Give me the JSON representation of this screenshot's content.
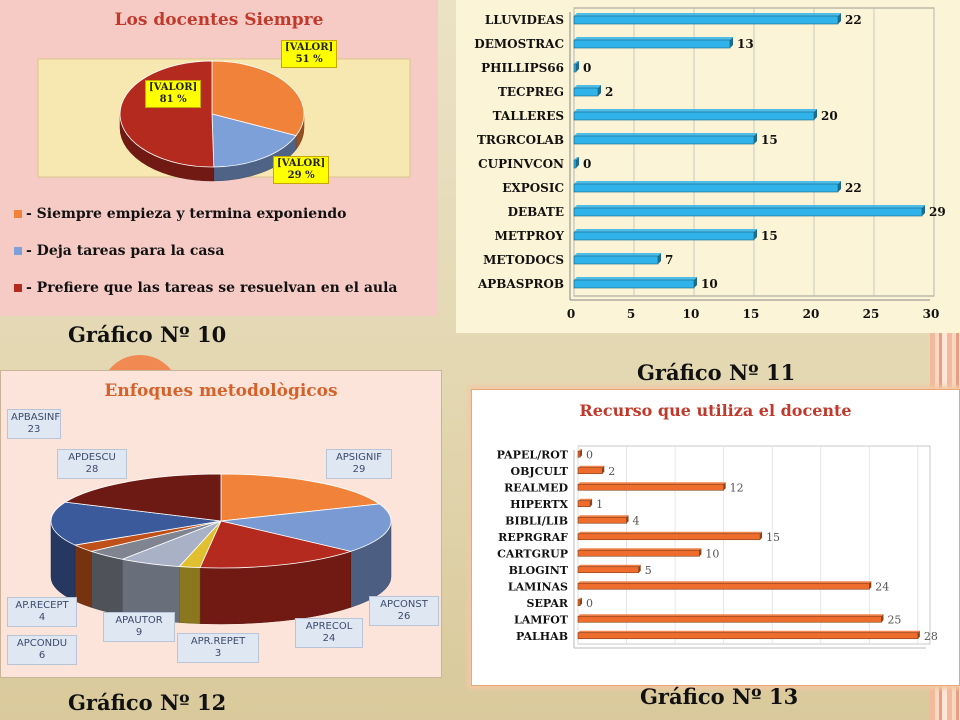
{
  "captions": {
    "g10": "Gráfico Nº 10",
    "g11": "Gráfico Nº 11",
    "g12": "Gráfico Nº 12",
    "g13": "Gráfico Nº 13"
  },
  "colors": {
    "pie10": [
      "#f0823a",
      "#7ea0d8",
      "#b42a1e"
    ],
    "bar11": "#2fb3ea",
    "bar13": "#ee6d2d",
    "pie12": [
      "#f0823a",
      "#7a9ad4",
      "#b42a1e",
      "#e0c030",
      "#a9b1c6",
      "#7f8490",
      "#c0501a",
      "#3a5a9c",
      "#6e1a14"
    ]
  },
  "chart_data": [
    {
      "id": "g10",
      "type": "pie",
      "title": "Los docentes Siempre",
      "legend_position": "bottom",
      "slices": [
        {
          "label": "- Siempre empieza y termina exponiendo",
          "value": 51,
          "value_label": "[VALOR]",
          "value_sub": "51 %"
        },
        {
          "label": "- Deja tareas para la casa",
          "value": 29,
          "value_label": "[VALOR]",
          "value_sub": "29 %"
        },
        {
          "label": "- Prefiere que las tareas se resuelvan en el aula",
          "value": 81,
          "value_label": "[VALOR]",
          "value_sub": "81 %"
        }
      ]
    },
    {
      "id": "g11",
      "type": "bar",
      "orientation": "horizontal",
      "title": "",
      "categories": [
        "LLUVIDEAS",
        "DEMOSTRAC",
        "PHILLIPS66",
        "TECPREG",
        "TALLERES",
        "TRGRCOLAB",
        "CUPINVCON",
        "EXPOSIC",
        "DEBATE",
        "METPROY",
        "METODOCS",
        "APBASPROB"
      ],
      "values": [
        22,
        13,
        0,
        2,
        20,
        15,
        0,
        22,
        29,
        15,
        7,
        10
      ],
      "xlim": [
        0,
        30
      ],
      "xticks": [
        0,
        5,
        10,
        15,
        20,
        25,
        30
      ],
      "grid": true
    },
    {
      "id": "g12",
      "type": "pie",
      "title": "Enfoques metodològicos",
      "slices": [
        {
          "label": "APSIGNIF",
          "value": 29
        },
        {
          "label": "APCONST",
          "value": 26
        },
        {
          "label": "APRECOL",
          "value": 24
        },
        {
          "label": "APR.REPET",
          "value": 3
        },
        {
          "label": "APAUTOR",
          "value": 9
        },
        {
          "label": "APCONDU",
          "value": 6
        },
        {
          "label": "AP.RECEPT",
          "value": 4
        },
        {
          "label": "APBASINF",
          "value": 23
        },
        {
          "label": "APDESCU",
          "value": 28
        }
      ]
    },
    {
      "id": "g13",
      "type": "bar",
      "orientation": "horizontal",
      "title": "Recurso que utiliza el docente",
      "categories": [
        "PAPEL/ROT",
        "OBJCULT",
        "REALMED",
        "HIPERTX",
        "BIBLI/LIB",
        "REPRGRAF",
        "CARTGRUP",
        "BLOGINT",
        "LAMINAS",
        "SEPAR",
        "LAMFOT",
        "PALHAB"
      ],
      "values": [
        0,
        2,
        12,
        1,
        4,
        15,
        10,
        5,
        24,
        0,
        25,
        28
      ],
      "xlim": [
        0,
        29
      ],
      "grid": true
    }
  ]
}
